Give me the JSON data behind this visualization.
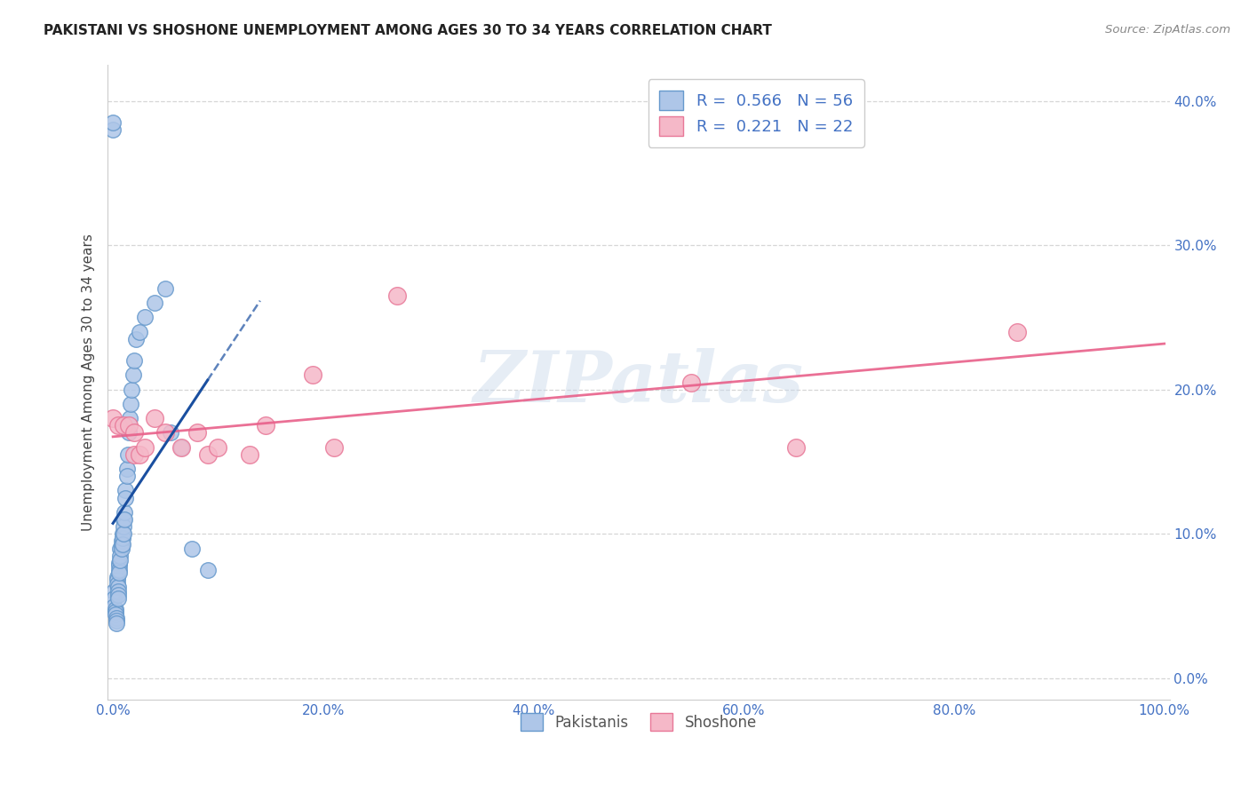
{
  "title": "PAKISTANI VS SHOSHONE UNEMPLOYMENT AMONG AGES 30 TO 34 YEARS CORRELATION CHART",
  "source": "Source: ZipAtlas.com",
  "ylabel": "Unemployment Among Ages 30 to 34 years",
  "xlim": [
    -0.005,
    1.005
  ],
  "ylim": [
    -0.015,
    0.425
  ],
  "pakistani_R": 0.566,
  "pakistani_N": 56,
  "shoshone_R": 0.221,
  "shoshone_N": 22,
  "pakistani_color": "#aec6e8",
  "shoshone_color": "#f5b8c8",
  "pakistani_edge_color": "#6699cc",
  "shoshone_edge_color": "#e87898",
  "pakistani_line_color": "#1a4fa0",
  "shoshone_line_color": "#e8608a",
  "watermark": "ZIPatlas",
  "xticks": [
    0.0,
    0.2,
    0.4,
    0.6,
    0.8,
    1.0
  ],
  "yticks": [
    0.0,
    0.1,
    0.2,
    0.3,
    0.4
  ],
  "pakistani_points_x": [
    0.0,
    0.0,
    0.001,
    0.001,
    0.001,
    0.002,
    0.002,
    0.002,
    0.003,
    0.003,
    0.003,
    0.004,
    0.004,
    0.004,
    0.005,
    0.005,
    0.005,
    0.005,
    0.006,
    0.006,
    0.006,
    0.006,
    0.007,
    0.007,
    0.007,
    0.008,
    0.008,
    0.008,
    0.009,
    0.009,
    0.009,
    0.01,
    0.01,
    0.01,
    0.011,
    0.011,
    0.012,
    0.012,
    0.013,
    0.013,
    0.014,
    0.015,
    0.016,
    0.017,
    0.018,
    0.019,
    0.02,
    0.022,
    0.025,
    0.03,
    0.04,
    0.05,
    0.055,
    0.065,
    0.075,
    0.09
  ],
  "pakistani_points_y": [
    0.38,
    0.385,
    0.06,
    0.055,
    0.05,
    0.048,
    0.046,
    0.044,
    0.042,
    0.04,
    0.038,
    0.07,
    0.068,
    0.065,
    0.063,
    0.06,
    0.058,
    0.055,
    0.08,
    0.078,
    0.075,
    0.073,
    0.09,
    0.085,
    0.082,
    0.095,
    0.092,
    0.09,
    0.1,
    0.097,
    0.093,
    0.11,
    0.105,
    0.1,
    0.115,
    0.11,
    0.13,
    0.125,
    0.145,
    0.14,
    0.155,
    0.17,
    0.18,
    0.19,
    0.2,
    0.21,
    0.22,
    0.235,
    0.24,
    0.25,
    0.26,
    0.27,
    0.17,
    0.16,
    0.09,
    0.075
  ],
  "shoshone_points_x": [
    0.0,
    0.005,
    0.01,
    0.015,
    0.02,
    0.02,
    0.025,
    0.03,
    0.04,
    0.05,
    0.065,
    0.08,
    0.09,
    0.1,
    0.13,
    0.145,
    0.19,
    0.21,
    0.27,
    0.55,
    0.65,
    0.86
  ],
  "shoshone_points_y": [
    0.18,
    0.175,
    0.175,
    0.175,
    0.155,
    0.17,
    0.155,
    0.16,
    0.18,
    0.17,
    0.16,
    0.17,
    0.155,
    0.16,
    0.155,
    0.175,
    0.21,
    0.16,
    0.265,
    0.205,
    0.16,
    0.24
  ],
  "legend_text_color": "#4472c4",
  "axis_label_color": "#4472c4",
  "grid_color": "#cccccc",
  "title_color": "#222222",
  "source_color": "#888888"
}
